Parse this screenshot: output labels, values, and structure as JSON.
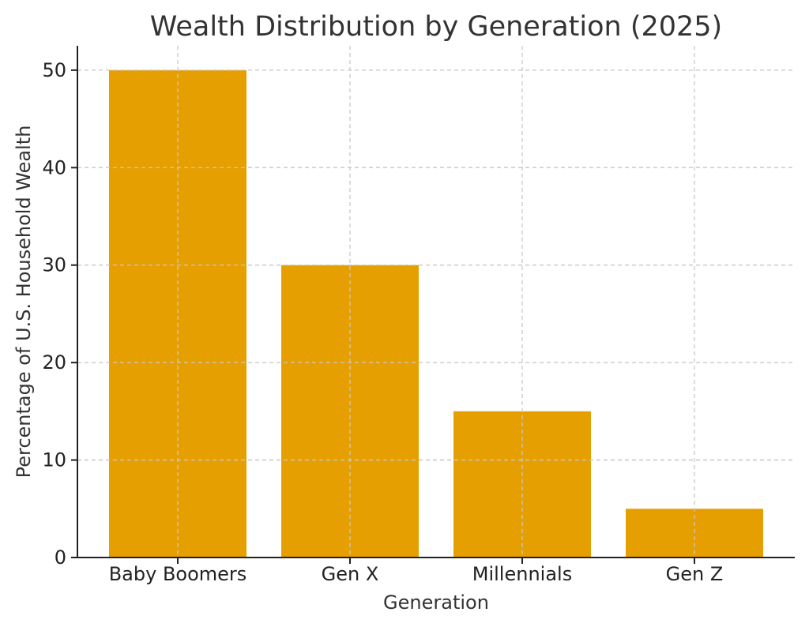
{
  "chart_data": {
    "type": "bar",
    "title": "Wealth Distribution by Generation (2025)",
    "xlabel": "Generation",
    "ylabel": "Percentage of U.S. Household Wealth",
    "categories": [
      "Baby Boomers",
      "Gen X",
      "Millennials",
      "Gen Z"
    ],
    "values": [
      50,
      30,
      15,
      5
    ],
    "ylim": [
      0,
      52.5
    ],
    "yticks": [
      0,
      10,
      20,
      30,
      40,
      50
    ],
    "grid": true,
    "bar_color": "#E69F00"
  }
}
